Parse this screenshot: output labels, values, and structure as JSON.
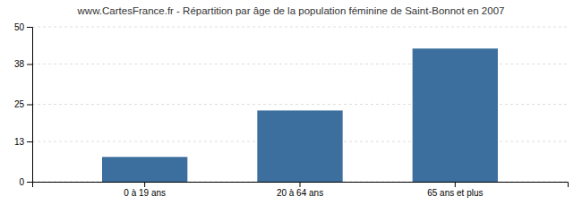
{
  "chart_data": {
    "type": "bar",
    "title": "www.CartesFrance.fr - Répartition par âge de la population féminine de Saint-Bonnot en 2007",
    "categories": [
      "0 à 19 ans",
      "20 à 64 ans",
      "65 ans et plus"
    ],
    "values": [
      8,
      23,
      43
    ],
    "color": "#3d6f9e",
    "ylim": [
      0,
      50
    ],
    "yticks": [
      0,
      13,
      25,
      38,
      50
    ],
    "grid": true
  }
}
